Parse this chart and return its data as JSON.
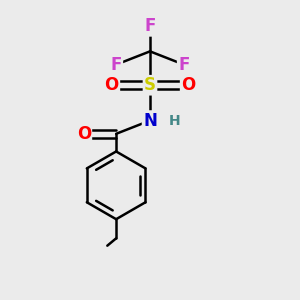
{
  "background_color": "#ebebeb",
  "figsize": [
    3.0,
    3.0
  ],
  "dpi": 100,
  "atom_colors": {
    "F": "#cc44cc",
    "S": "#cccc00",
    "O": "#ff0000",
    "N": "#0000cc",
    "H": "#448888",
    "C": "#000000"
  },
  "bond_color": "#000000",
  "bond_width": 1.8,
  "font_size_atoms": 12,
  "font_size_small": 10
}
